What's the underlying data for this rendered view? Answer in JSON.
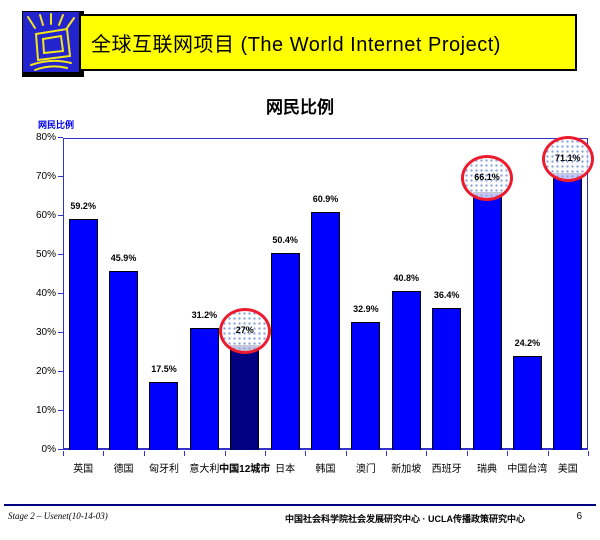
{
  "header": {
    "title": "全球互联网项目 (The World Internet Project)",
    "banner_bg": "#FFFF00",
    "logo_bg": "#2424CF",
    "logo_icon": "shining-monitor",
    "logo_stroke": "#F2E41C"
  },
  "slide_title": "网民比例",
  "chart_data": {
    "type": "bar",
    "title": "网民比例",
    "axis_label": "网民比例",
    "axis_label_color": "#0000EE",
    "categories": [
      "英国",
      "德国",
      "匈牙利",
      "意大利",
      "中国12城市",
      "日本",
      "韩国",
      "澳门",
      "新加坡",
      "西班牙",
      "瑞典",
      "中国台湾",
      "美国"
    ],
    "values": [
      59.2,
      45.9,
      17.5,
      31.2,
      27,
      50.4,
      60.9,
      32.9,
      40.8,
      36.4,
      66.1,
      24.2,
      71.1
    ],
    "value_labels": [
      "59.2%",
      "45.9%",
      "17.5%",
      "31.2%",
      "27%",
      "50.4%",
      "60.9%",
      "32.9%",
      "40.8%",
      "36.4%",
      "66.1%",
      "24.2%",
      "71.1%"
    ],
    "highlighted_indices": [
      4,
      10,
      12
    ],
    "dark_bar_index": 4,
    "bold_category_index": 4,
    "ylim": [
      0,
      80
    ],
    "y_ticks": [
      "0%",
      "10%",
      "20%",
      "30%",
      "40%",
      "50%",
      "60%",
      "70%",
      "80%"
    ],
    "grid": "off",
    "legend": "none",
    "bar_color": "#0000FF",
    "dark_bar_color": "#000080",
    "axis_color": "#3333CC",
    "highlight_circle_color": "#ED1B2E"
  },
  "footer": {
    "left": "Stage 2 – Usenet(10-14-03)",
    "center": "中国社会科学院社会发展研究中心 · UCLA传播政策研究中心",
    "page_number": "6",
    "line_color": "#000080"
  }
}
